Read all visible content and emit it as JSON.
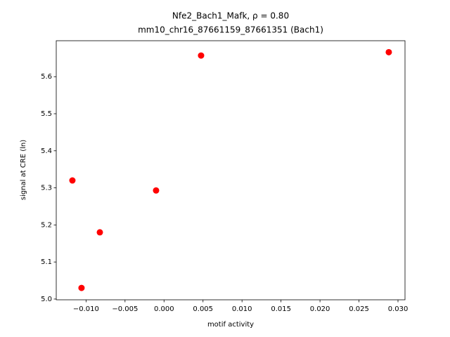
{
  "chart_data": {
    "type": "scatter",
    "title": "Nfe2_Bach1_Mafk, ρ = 0.80",
    "subtitle": "mm10_chr16_87661159_87661351 (Bach1)",
    "x_label": "motif activity",
    "y_label": "signal at CRE (ln)",
    "color": "#ff0000",
    "x": [
      -0.01175,
      -0.01058,
      -0.00823,
      -0.00102,
      0.00475,
      0.02882
    ],
    "values": [
      5.32,
      5.03,
      5.18,
      5.293,
      5.657,
      5.666
    ],
    "xlim": [
      -0.01382,
      0.0309
    ],
    "ylim": [
      4.998,
      5.697
    ],
    "xticks": [
      {
        "value": -0.01,
        "label": "−0.010"
      },
      {
        "value": -0.005,
        "label": "−0.005"
      },
      {
        "value": 0,
        "label": "0.000"
      },
      {
        "value": 0.005,
        "label": "0.005"
      },
      {
        "value": 0.01,
        "label": "0.010"
      },
      {
        "value": 0.015,
        "label": "0.015"
      },
      {
        "value": 0.02,
        "label": "0.020"
      },
      {
        "value": 0.025,
        "label": "0.025"
      },
      {
        "value": 0.03,
        "label": "0.030"
      }
    ],
    "yticks": [
      {
        "value": 5,
        "label": "5.0"
      },
      5.1,
      5.2,
      5.3,
      5.4,
      5.5,
      5.6
    ],
    "grid": false
  }
}
